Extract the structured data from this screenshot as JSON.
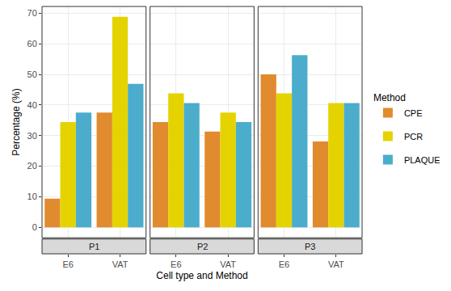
{
  "chart_data": {
    "type": "bar",
    "x_label": "Cell type and Method",
    "y_label": "Percentage (%)",
    "legend_title": "Method",
    "legend": "right",
    "grid": true,
    "ylim": [
      -3.4,
      72.2
    ],
    "yticks": [
      0,
      10,
      20,
      30,
      40,
      50,
      60,
      70
    ],
    "facets": [
      "P1",
      "P2",
      "P3"
    ],
    "categories": [
      "E6",
      "VAT"
    ],
    "series": [
      {
        "name": "CPE",
        "color": "#E08B2E",
        "values": [
          [
            9.4,
            37.5
          ],
          [
            34.4,
            31.3
          ],
          [
            50,
            28.1
          ]
        ]
      },
      {
        "name": "PCR",
        "color": "#E5D300",
        "values": [
          [
            34.4,
            68.8
          ],
          [
            43.8,
            37.5
          ],
          [
            43.8,
            40.6
          ]
        ]
      },
      {
        "name": "PLAQUE",
        "color": "#4BADCB",
        "values": [
          [
            37.5,
            46.9
          ],
          [
            40.6,
            34.4
          ],
          [
            56.3,
            40.6
          ]
        ]
      }
    ]
  }
}
